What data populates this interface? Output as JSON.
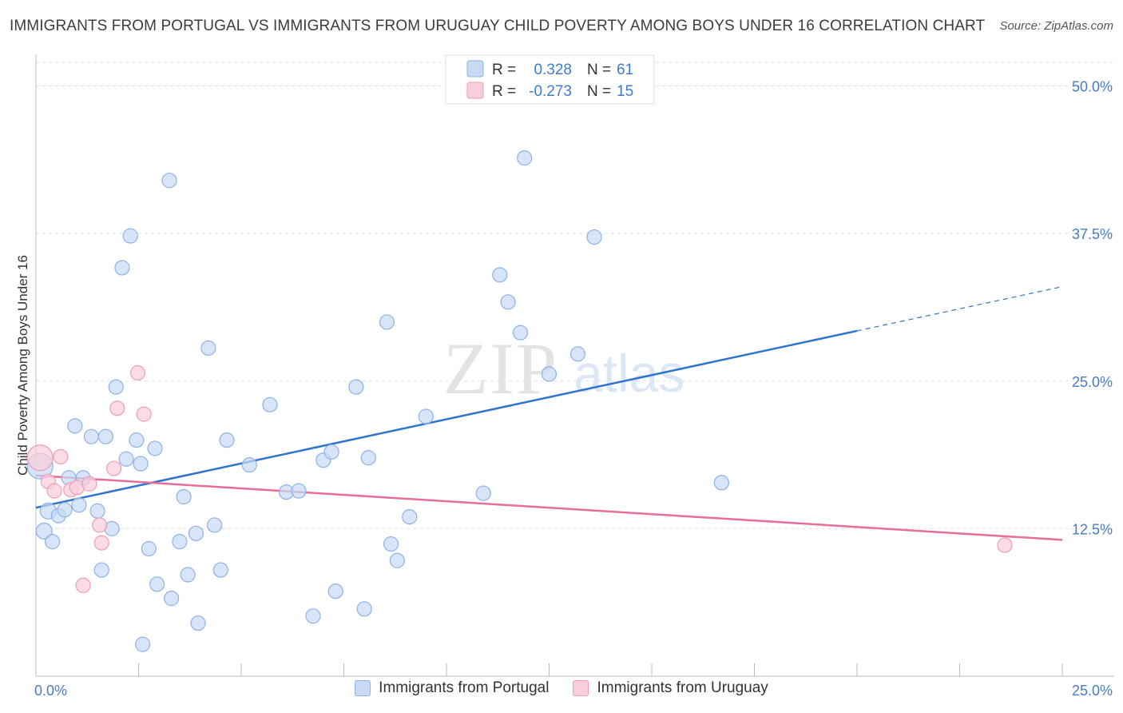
{
  "header": {
    "title": "IMMIGRANTS FROM PORTUGAL VS IMMIGRANTS FROM URUGUAY CHILD POVERTY AMONG BOYS UNDER 16 CORRELATION CHART",
    "source": "Source: ZipAtlas.com"
  },
  "watermark": {
    "zip": "ZIP",
    "atlas": "atlas"
  },
  "legend": {
    "r_label": "R =",
    "n_label": "N =",
    "rows": [
      {
        "r": "0.328",
        "n": "61"
      },
      {
        "r": "-0.273",
        "n": "15"
      }
    ]
  },
  "colors": {
    "portugal_fill": "#c7d9f3",
    "portugal_stroke": "#8db2e6",
    "portugal_line": "#2e73cc",
    "uruguay_fill": "#f9cdd9",
    "uruguay_stroke": "#ee9db5",
    "uruguay_line": "#e56f9a",
    "value_text": "#3e7bd0"
  },
  "chart_data": {
    "type": "scatter",
    "xlabel": "",
    "ylabel": "Child Poverty Among Boys Under 16",
    "xlim": [
      0,
      25
    ],
    "ylim": [
      0,
      52
    ],
    "x_tick_labels": [
      {
        "value": 0,
        "label": "0.0%"
      },
      {
        "value": 25,
        "label": "25.0%"
      }
    ],
    "y_tick_labels": [
      {
        "value": 12.5,
        "label": "12.5%"
      },
      {
        "value": 25,
        "label": "25.0%"
      },
      {
        "value": 37.5,
        "label": "37.5%"
      },
      {
        "value": 50,
        "label": "50.0%"
      }
    ],
    "x_minor_ticks": [
      2.5,
      5,
      7.5,
      10,
      12.5,
      15,
      17.5,
      20,
      22.5,
      25
    ],
    "grid": true,
    "legend_position": "top-center",
    "series": [
      {
        "name": "Immigrants from Portugal",
        "points": [
          [
            0.1,
            17.8,
            16
          ],
          [
            0.2,
            12.3,
            10
          ],
          [
            0.3,
            14.0,
            10
          ],
          [
            0.4,
            11.4,
            9
          ],
          [
            0.55,
            13.6,
            9
          ],
          [
            0.7,
            14.1,
            9
          ],
          [
            0.8,
            16.8,
            9
          ],
          [
            0.95,
            21.2,
            9
          ],
          [
            1.05,
            14.5,
            9
          ],
          [
            1.15,
            16.8,
            9
          ],
          [
            1.35,
            20.3,
            9
          ],
          [
            1.5,
            14.0,
            9
          ],
          [
            1.6,
            9.0,
            9
          ],
          [
            1.7,
            20.3,
            9
          ],
          [
            1.85,
            12.5,
            9
          ],
          [
            1.95,
            24.5,
            9
          ],
          [
            2.1,
            34.6,
            9
          ],
          [
            2.2,
            18.4,
            9
          ],
          [
            2.3,
            37.3,
            9
          ],
          [
            2.45,
            20.0,
            9
          ],
          [
            2.55,
            18.0,
            9
          ],
          [
            2.6,
            2.7,
            9
          ],
          [
            2.75,
            10.8,
            9
          ],
          [
            2.9,
            19.3,
            9
          ],
          [
            2.95,
            7.8,
            9
          ],
          [
            3.25,
            42.0,
            9
          ],
          [
            3.3,
            6.6,
            9
          ],
          [
            3.5,
            11.4,
            9
          ],
          [
            3.6,
            15.2,
            9
          ],
          [
            3.7,
            8.6,
            9
          ],
          [
            3.9,
            12.1,
            9
          ],
          [
            3.95,
            4.5,
            9
          ],
          [
            4.2,
            27.8,
            9
          ],
          [
            4.35,
            12.8,
            9
          ],
          [
            4.5,
            9.0,
            9
          ],
          [
            4.65,
            20.0,
            9
          ],
          [
            5.2,
            17.9,
            9
          ],
          [
            5.7,
            23.0,
            9
          ],
          [
            6.1,
            15.6,
            9
          ],
          [
            6.4,
            15.7,
            9
          ],
          [
            6.75,
            5.1,
            9
          ],
          [
            7.0,
            18.3,
            9
          ],
          [
            7.2,
            19.0,
            9
          ],
          [
            7.3,
            7.2,
            9
          ],
          [
            7.8,
            24.5,
            9
          ],
          [
            8.0,
            5.7,
            9
          ],
          [
            8.1,
            18.5,
            9
          ],
          [
            8.55,
            30.0,
            9
          ],
          [
            8.65,
            11.2,
            9
          ],
          [
            8.8,
            9.8,
            9
          ],
          [
            9.1,
            13.5,
            9
          ],
          [
            9.5,
            22.0,
            9
          ],
          [
            10.9,
            15.5,
            9
          ],
          [
            11.3,
            34.0,
            9
          ],
          [
            11.5,
            31.7,
            9
          ],
          [
            11.8,
            29.1,
            9
          ],
          [
            11.9,
            43.9,
            9
          ],
          [
            12.5,
            25.6,
            9
          ],
          [
            13.2,
            27.3,
            9
          ],
          [
            13.6,
            37.2,
            9
          ],
          [
            16.7,
            16.4,
            9
          ]
        ]
      },
      {
        "name": "Immigrants from Uruguay",
        "points": [
          [
            0.1,
            18.5,
            16
          ],
          [
            0.3,
            16.5,
            9
          ],
          [
            0.45,
            15.7,
            9
          ],
          [
            0.6,
            18.6,
            9
          ],
          [
            0.85,
            15.8,
            9
          ],
          [
            1.0,
            16.0,
            9
          ],
          [
            1.15,
            7.7,
            9
          ],
          [
            1.3,
            16.3,
            9
          ],
          [
            1.55,
            12.8,
            9
          ],
          [
            1.6,
            11.3,
            9
          ],
          [
            1.9,
            17.6,
            9
          ],
          [
            1.98,
            22.7,
            9
          ],
          [
            2.48,
            25.7,
            9
          ],
          [
            2.63,
            22.2,
            9
          ],
          [
            23.6,
            11.1,
            9
          ]
        ]
      }
    ],
    "trend_lines": [
      {
        "series": "Immigrants from Portugal",
        "x_solid": [
          0,
          20
        ],
        "x_dashed": [
          20,
          25
        ],
        "y_at_0": 14.28,
        "slope": 0.7487
      },
      {
        "series": "Immigrants from Uruguay",
        "x_solid": [
          0,
          25
        ],
        "y_at_0": 17.0,
        "slope": -0.218
      }
    ]
  },
  "bottom_legend": [
    {
      "label": "Immigrants from Portugal"
    },
    {
      "label": "Immigrants from Uruguay"
    }
  ]
}
